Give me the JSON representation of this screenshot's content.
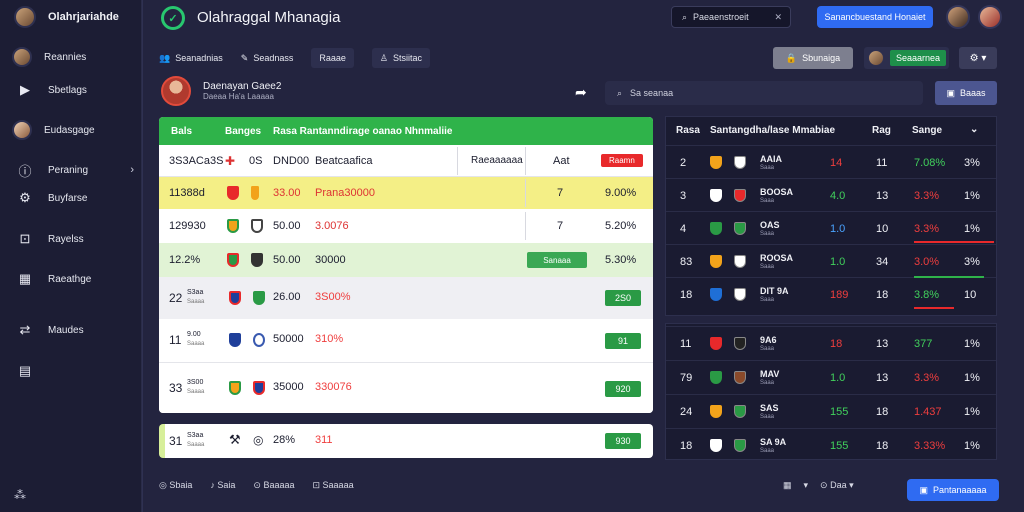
{
  "sidebar": {
    "brand": "Olahrjariahde",
    "items": [
      {
        "label": "Reannies",
        "icon": "user-avatar-icon"
      },
      {
        "label": "Sbetlags",
        "icon": "play-icon"
      },
      {
        "label": "Eudasgage",
        "icon": "user-avatar-icon"
      },
      {
        "label": "Peraning",
        "icon": "info-icon",
        "chevron": "›"
      },
      {
        "label": "Buyfarse",
        "icon": "gear-icon"
      },
      {
        "label": "Rayelss",
        "icon": "chart-icon"
      },
      {
        "label": "Raeathge",
        "icon": "table-icon"
      },
      {
        "label": "Maudes",
        "icon": "transfer-icon"
      },
      {
        "label": "",
        "icon": "clipboard-icon"
      }
    ]
  },
  "header": {
    "title": "Olahraggal Mhanagia",
    "search_label": "Paeaenstroeit",
    "search_clear": "✕",
    "primary_button": "Sanancbuestand Honaiet"
  },
  "toolbar": {
    "items": [
      "Seanadnias",
      "Seadnass",
      "Raaae",
      "Stsiitac"
    ],
    "btn_grey": "Sbunaiga",
    "btn_green": "Seaaarnea",
    "btn_gear": "⚙ ▾"
  },
  "profile": {
    "name": "Daenayan Gaee2",
    "sub": "Daeaa Ha'a Laaaaa",
    "search_placeholder": "Sa seanaa",
    "button": "Baaas"
  },
  "left_table": {
    "headers": [
      "Bals",
      "Banges",
      "Rasa Rantanndirage oanao Nhnmaliie"
    ],
    "rows": [
      {
        "num": "3S3ACa3S",
        "c1": "0S",
        "c2": "DND00",
        "c3": "Beatcaafica",
        "c4": "Raeaaaaaa",
        "c5": "Aat",
        "badge": "Raamn",
        "style": "plain"
      },
      {
        "num": "11388d",
        "c1": "",
        "c2": "33.00",
        "c3": "Prana30000",
        "c4": "7",
        "c5": "9.00%",
        "style": "yellow"
      },
      {
        "num": "129930",
        "c1": "",
        "c2": "50.00",
        "c3": "3.0076",
        "c4": "7",
        "c5": "5.20%",
        "style": "plain"
      },
      {
        "num": "12.2%",
        "c1": "",
        "c2": "50.00",
        "c3": "30000",
        "badge": "Sanaaa",
        "c5": "5.30%",
        "style": "green"
      },
      {
        "num": "22",
        "sub1": "S3aa",
        "sub2": "Saaaa",
        "c2": "26.00",
        "c3": "3S00%",
        "badge": "2S0",
        "style": "grey"
      },
      {
        "num": "11",
        "sub1": "9.00",
        "sub2": "Saaaa",
        "c2": "50000",
        "c3": "310%",
        "badge": "91",
        "style": "plain"
      },
      {
        "num": "33",
        "sub1": "3S00",
        "sub2": "Saaaa",
        "c2": "35000",
        "c3": "330076",
        "badge": "920",
        "style": "plain"
      }
    ],
    "card": {
      "num": "31",
      "sub1": "S3aa",
      "sub2": "Saaaa",
      "c2": "28%",
      "c3": "311",
      "badge": "930"
    }
  },
  "right_table": {
    "headers": [
      "Rasa",
      "Santangdha/lase Mmabiae",
      "Rag",
      "Sange"
    ],
    "rows_top": [
      {
        "pos": "2",
        "team": "AAIA",
        "sub": "Saaa",
        "a": "14",
        "b": "11",
        "c": "7.08%",
        "d": "3%",
        "a_col": "red",
        "c_col": "green"
      },
      {
        "pos": "3",
        "team": "BOOSA",
        "sub": "Saaa",
        "a": "4.0",
        "b": "13",
        "c": "3.3%",
        "d": "1%",
        "a_col": "green",
        "c_col": "red"
      },
      {
        "pos": "4",
        "team": "OAS",
        "sub": "Saaa",
        "a": "1.0",
        "b": "10",
        "c": "3.3%",
        "d": "1%",
        "a_col": "blue",
        "c_col": "red"
      },
      {
        "pos": "83",
        "team": "ROOSA",
        "sub": "Saaa",
        "a": "1.0",
        "b": "34",
        "c": "3.0%",
        "d": "3%",
        "a_col": "green",
        "c_col": "red"
      },
      {
        "pos": "18",
        "team": "DIT 9A",
        "sub": "Saaa",
        "a": "189",
        "b": "18",
        "c": "3.8%",
        "d": "10",
        "a_col": "red",
        "c_col": "green"
      }
    ],
    "rows_bottom": [
      {
        "pos": "11",
        "team": "9A6",
        "sub": "Saaa",
        "a": "18",
        "b": "13",
        "c": "377",
        "d": "1%",
        "a_col": "red",
        "c_col": "green"
      },
      {
        "pos": "79",
        "team": "MAV",
        "sub": "Saaa",
        "a": "1.0",
        "b": "13",
        "c": "3.3%",
        "d": "1%",
        "a_col": "green",
        "c_col": "red"
      },
      {
        "pos": "24",
        "team": "SAS",
        "sub": "Saaa",
        "a": "155",
        "b": "18",
        "c": "1.437",
        "d": "1%",
        "a_col": "green",
        "c_col": "red"
      },
      {
        "pos": "18",
        "team": "SA 9A",
        "sub": "Saaa",
        "a": "155",
        "b": "18",
        "c": "3.33%",
        "d": "1%",
        "a_col": "green",
        "c_col": "red"
      }
    ]
  },
  "footer": {
    "items": [
      "Sbaia",
      "Saia",
      "Baaaaa",
      "Saaaaa"
    ],
    "pager_left": "▾",
    "pager_label": "Daa",
    "button": "Pantanaaaaa"
  },
  "colors": {
    "accent_green": "#2fb34a",
    "accent_blue": "#2f6bf2",
    "danger": "#e8292b",
    "bg": "#23243f"
  }
}
